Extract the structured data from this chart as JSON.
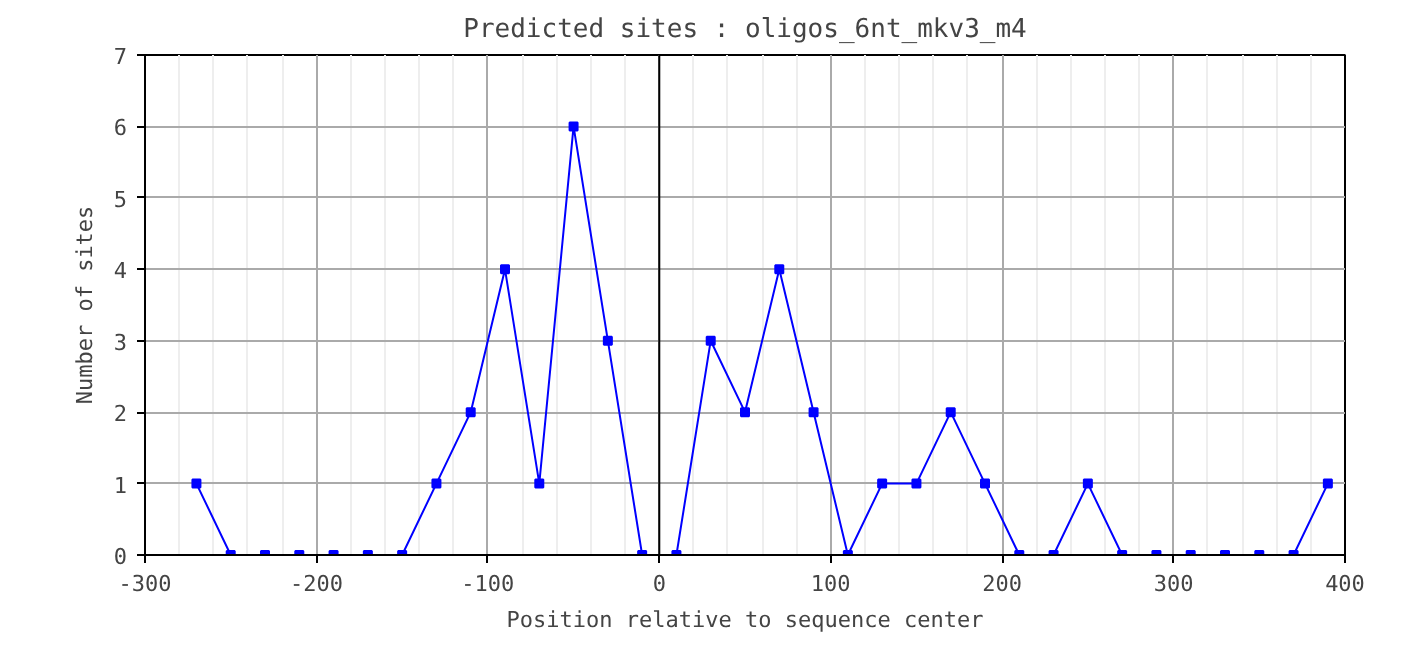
{
  "chart_data": {
    "type": "line",
    "title": "Predicted sites : oligos_6nt_mkv3_m4",
    "xlabel": "Position relative to sequence center",
    "ylabel": "Number of sites",
    "x": [
      -270,
      -250,
      -230,
      -210,
      -190,
      -170,
      -150,
      -130,
      -110,
      -90,
      -70,
      -50,
      -30,
      -10,
      10,
      30,
      50,
      70,
      90,
      110,
      130,
      150,
      170,
      190,
      210,
      230,
      250,
      270,
      290,
      310,
      330,
      350,
      370,
      390
    ],
    "series": [
      {
        "color": "#0000ff",
        "values": [
          1,
          0,
          0,
          0,
          0,
          0,
          0,
          1,
          2,
          4,
          1,
          6,
          3,
          0,
          0,
          3,
          2,
          4,
          2,
          0,
          1,
          1,
          2,
          1,
          0,
          0,
          1,
          0,
          0,
          0,
          0,
          0,
          0,
          1
        ]
      }
    ],
    "xlim": [
      -300,
      400
    ],
    "xticks": [
      -300,
      -200,
      -100,
      0,
      100,
      200,
      300,
      400
    ],
    "ylim": [
      0,
      7
    ],
    "yticks": [
      0,
      1,
      2,
      3,
      4,
      5,
      6,
      7
    ],
    "grid": true,
    "marker": "square",
    "line_style": "solid",
    "ref_lines": [
      {
        "axis": "x",
        "value": 0,
        "color": "#000000"
      }
    ]
  }
}
